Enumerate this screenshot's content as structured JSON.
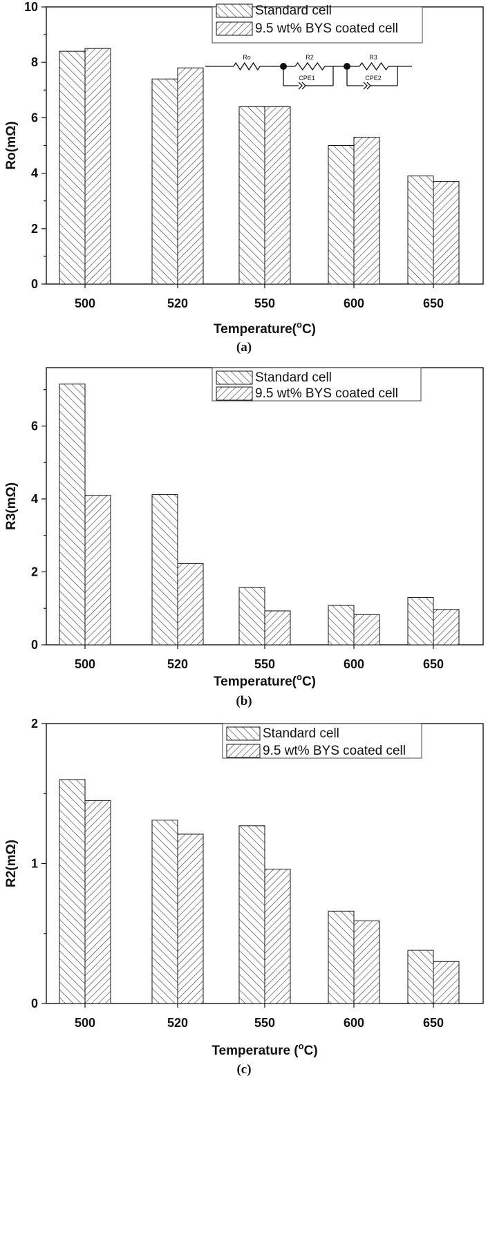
{
  "chart_data": [
    {
      "type": "bar",
      "panel_label": "(a)",
      "categories": [
        "500",
        "520",
        "550",
        "600",
        "650"
      ],
      "series": [
        {
          "name": "Standard cell",
          "values": [
            8.4,
            7.4,
            6.4,
            5.0,
            3.9
          ]
        },
        {
          "name": "9.5 wt% BYS coated cell",
          "values": [
            8.5,
            7.8,
            6.4,
            5.3,
            3.7
          ]
        }
      ],
      "xlabel_main": "Temperature(",
      "xlabel_sup": "o",
      "xlabel_end": "C)",
      "ylabel": "Ro(mΩ)",
      "ylim": [
        0,
        10
      ],
      "yticks": [
        "0",
        "2",
        "4",
        "6",
        "8",
        "10"
      ],
      "legend_position": "top-right",
      "inset": {
        "type": "equivalent-circuit",
        "labels": [
          "Ro",
          "R2",
          "CPE1",
          "R3",
          "CPE2"
        ]
      }
    },
    {
      "type": "bar",
      "panel_label": "(b)",
      "categories": [
        "500",
        "520",
        "550",
        "600",
        "650"
      ],
      "series": [
        {
          "name": "Standard cell",
          "values": [
            7.15,
            4.12,
            1.57,
            1.08,
            1.3
          ]
        },
        {
          "name": " 9.5 wt% BYS coated cell",
          "values": [
            4.1,
            2.23,
            0.93,
            0.83,
            0.97
          ]
        }
      ],
      "xlabel_main": "Temperature(",
      "xlabel_sup": "o",
      "xlabel_end": "C)",
      "ylabel": "R3(mΩ)",
      "ylim": [
        0,
        7.6
      ],
      "yticks": [
        "0",
        "2",
        "4",
        "6"
      ],
      "legend_position": "top-right"
    },
    {
      "type": "bar",
      "panel_label": "(c)",
      "categories": [
        "500",
        "520",
        "550",
        "600",
        "650"
      ],
      "series": [
        {
          "name": "Standard cell",
          "values": [
            1.6,
            1.31,
            1.27,
            0.66,
            0.38
          ]
        },
        {
          "name": "9.5 wt% BYS coated cell",
          "values": [
            1.45,
            1.21,
            0.96,
            0.59,
            0.3
          ]
        }
      ],
      "xlabel_main": "Temperature (",
      "xlabel_sup": "o",
      "xlabel_end": "C)",
      "ylabel": "R2(mΩ)",
      "ylim": [
        0,
        2
      ],
      "yticks": [
        "0",
        "1",
        "2"
      ],
      "legend_position": "top-right"
    }
  ]
}
